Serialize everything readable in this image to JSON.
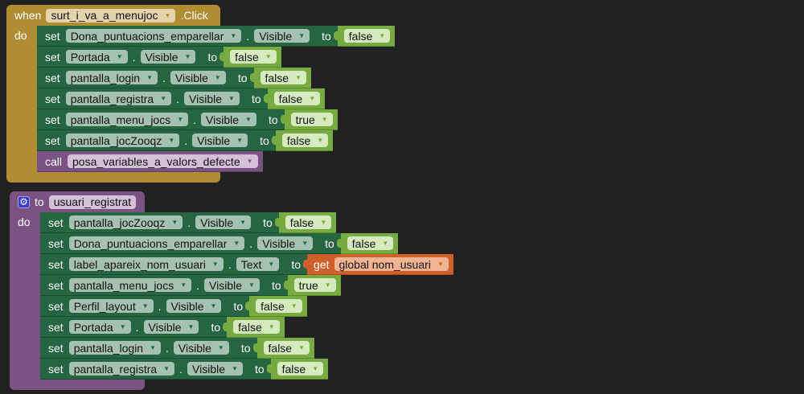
{
  "colors": {
    "background": "#212121",
    "event": "#b08d33",
    "procedure": "#7a5283",
    "setter": "#266542",
    "logic": "#77ab41",
    "variable_get": "#d15f2b"
  },
  "event_block": {
    "when": "when",
    "component": "surt_i_va_a_menujoc",
    "event": ".Click",
    "do": "do",
    "statements": [
      {
        "kw": "set",
        "component": "Dona_puntuacions_emparellar",
        "property": "Visible",
        "to": "to",
        "value": "false"
      },
      {
        "kw": "set",
        "component": "Portada",
        "property": "Visible",
        "to": "to",
        "value": "false"
      },
      {
        "kw": "set",
        "component": "pantalla_login",
        "property": "Visible",
        "to": "to",
        "value": "false"
      },
      {
        "kw": "set",
        "component": "pantalla_registra",
        "property": "Visible",
        "to": "to",
        "value": "false"
      },
      {
        "kw": "set",
        "component": "pantalla_menu_jocs",
        "property": "Visible",
        "to": "to",
        "value": "true"
      },
      {
        "kw": "set",
        "component": "pantalla_jocZooqz",
        "property": "Visible",
        "to": "to",
        "value": "false"
      },
      {
        "kw": "call",
        "procedure": "posa_variables_a_valors_defecte"
      }
    ]
  },
  "procedure_block": {
    "icon": "gear-icon",
    "to": "to",
    "name": "usuari_registrat",
    "do": "do",
    "statements": [
      {
        "kw": "set",
        "component": "pantalla_jocZooqz",
        "property": "Visible",
        "to": "to",
        "value": "false"
      },
      {
        "kw": "set",
        "component": "Dona_puntuacions_emparellar",
        "property": "Visible",
        "to": "to",
        "value": "false"
      },
      {
        "kw": "set",
        "component": "label_apareix_nom_usuari",
        "property": "Text",
        "to": "to",
        "get": "get",
        "variable": "global nom_usuari"
      },
      {
        "kw": "set",
        "component": "pantalla_menu_jocs",
        "property": "Visible",
        "to": "to",
        "value": "true"
      },
      {
        "kw": "set",
        "component": "Perfil_layout",
        "property": "Visible",
        "to": "to",
        "value": "false"
      },
      {
        "kw": "set",
        "component": "Portada",
        "property": "Visible",
        "to": "to",
        "value": "false"
      },
      {
        "kw": "set",
        "component": "pantalla_login",
        "property": "Visible",
        "to": "to",
        "value": "false"
      },
      {
        "kw": "set",
        "component": "pantalla_registra",
        "property": "Visible",
        "to": "to",
        "value": "false"
      }
    ]
  }
}
